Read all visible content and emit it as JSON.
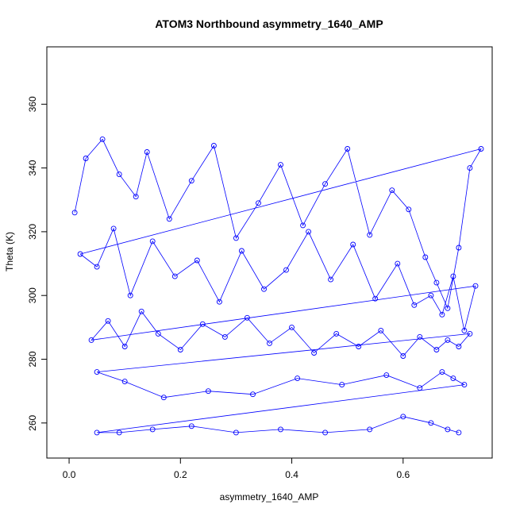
{
  "chart_data": {
    "type": "scatter",
    "title": "ATOM3 Northbound asymmetry_1640_AMP",
    "xlabel": "asymmetry_1640_AMP",
    "ylabel": "Theta (K)",
    "xlim": [
      -0.04,
      0.76
    ],
    "ylim": [
      249,
      378
    ],
    "xticks": [
      0.0,
      0.2,
      0.4,
      0.6
    ],
    "xtick_labels": [
      "0.0",
      "0.2",
      "0.4",
      "0.6"
    ],
    "yticks": [
      260,
      280,
      300,
      320,
      340,
      360
    ],
    "ytick_labels": [
      "260",
      "280",
      "300",
      "320",
      "340",
      "360"
    ],
    "grid": false,
    "marker": "open-circle",
    "line": true,
    "series": [
      {
        "color": "#0000ff",
        "x": [
          0.01,
          0.03,
          0.06,
          0.09,
          0.12,
          0.14,
          0.18,
          0.22,
          0.26,
          0.3,
          0.34,
          0.38,
          0.42,
          0.46,
          0.5,
          0.54,
          0.58,
          0.61,
          0.64,
          0.66,
          0.68,
          0.7,
          0.72,
          0.74,
          0.02,
          0.05,
          0.08,
          0.11,
          0.15,
          0.19,
          0.23,
          0.27,
          0.31,
          0.35,
          0.39,
          0.43,
          0.47,
          0.51,
          0.55,
          0.59,
          0.62,
          0.65,
          0.67,
          0.69,
          0.71,
          0.73,
          0.04,
          0.07,
          0.1,
          0.13,
          0.16,
          0.2,
          0.24,
          0.28,
          0.32,
          0.36,
          0.4,
          0.44,
          0.48,
          0.52,
          0.56,
          0.6,
          0.63,
          0.66,
          0.68,
          0.7,
          0.72,
          0.05,
          0.1,
          0.17,
          0.25,
          0.33,
          0.41,
          0.49,
          0.57,
          0.63,
          0.67,
          0.69,
          0.71,
          0.05,
          0.09,
          0.15,
          0.22,
          0.3,
          0.38,
          0.46,
          0.54,
          0.6,
          0.65,
          0.68,
          0.7
        ],
        "y": [
          326,
          343,
          349,
          338,
          331,
          345,
          324,
          336,
          347,
          318,
          329,
          341,
          322,
          335,
          346,
          319,
          333,
          327,
          312,
          304,
          296,
          315,
          340,
          346,
          313,
          309,
          321,
          300,
          317,
          306,
          311,
          298,
          314,
          302,
          308,
          320,
          305,
          316,
          299,
          310,
          297,
          300,
          294,
          306,
          289,
          303,
          286,
          292,
          284,
          295,
          288,
          283,
          291,
          287,
          293,
          285,
          290,
          282,
          288,
          284,
          289,
          281,
          287,
          283,
          286,
          284,
          288,
          276,
          273,
          268,
          270,
          269,
          274,
          272,
          275,
          271,
          276,
          274,
          272,
          257,
          257,
          258,
          259,
          257,
          258,
          257,
          258,
          262,
          260,
          258,
          257
        ]
      }
    ]
  }
}
